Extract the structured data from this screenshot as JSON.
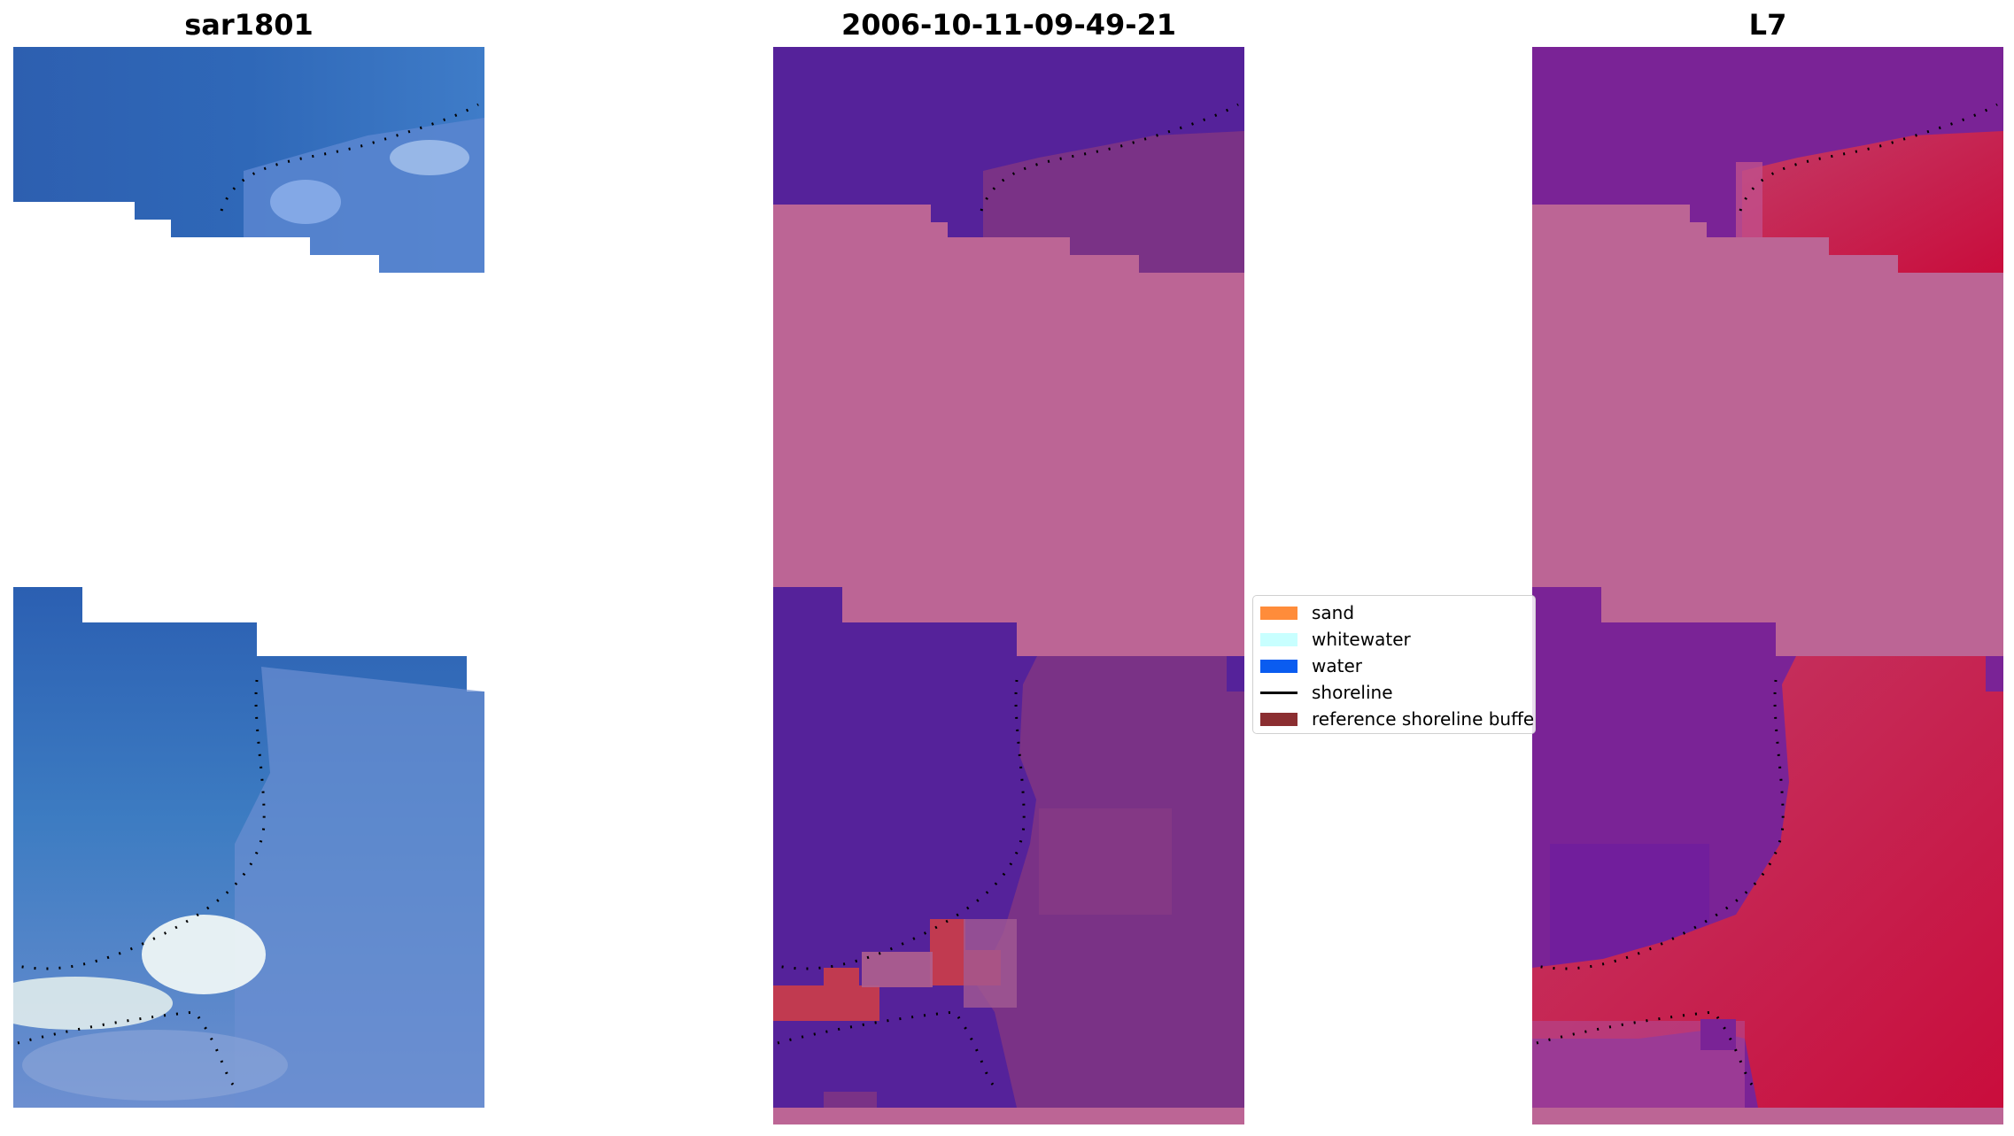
{
  "panels": [
    {
      "title": "sar1801",
      "image_kind": "rgb-satellite-image"
    },
    {
      "title": "2006-10-11-09-49-21",
      "image_kind": "classified-image-overlay"
    },
    {
      "title": "L7",
      "image_kind": "mndwi-image"
    }
  ],
  "legend": {
    "items": [
      {
        "label": "sand",
        "kind": "patch",
        "color": "#ff8c3a"
      },
      {
        "label": "whitewater",
        "kind": "patch",
        "color": "#c8ffff"
      },
      {
        "label": "water",
        "kind": "patch",
        "color": "#0a5cf0"
      },
      {
        "label": "shoreline",
        "kind": "line",
        "color": "#000000"
      },
      {
        "label": "reference shoreline buffer",
        "kind": "patch",
        "color": "#8b2e31"
      }
    ]
  },
  "colors": {
    "rgb_water": "#2b60b4",
    "class_water": "#55229a",
    "class_land": "#b96294",
    "class_sand_red": "#c13a50",
    "no_data_pink": "#bc6595",
    "mndwi_purple": "#7a2396",
    "mndwi_red": "#c91a48"
  }
}
